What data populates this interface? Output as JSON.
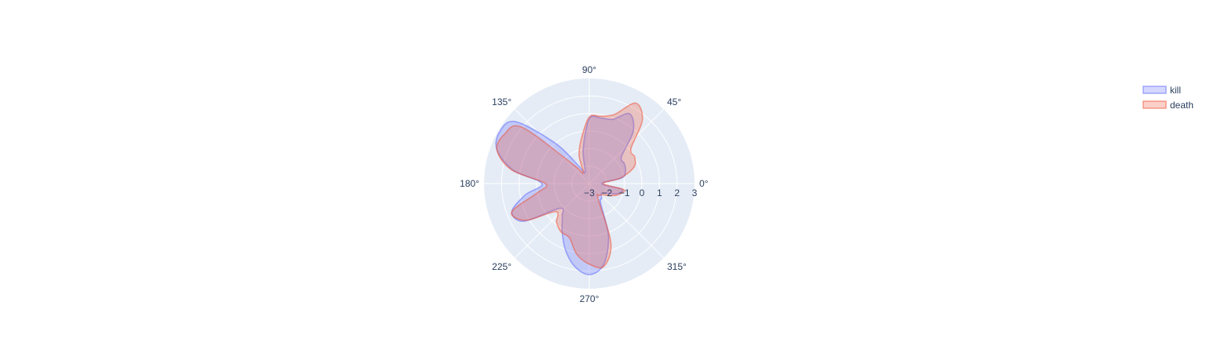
{
  "chart_data": {
    "type": "polar-area",
    "title": "",
    "angular_axis": {
      "unit": "degrees",
      "tick_labels": [
        "0°",
        "45°",
        "90°",
        "135°",
        "180°",
        "225°",
        "270°",
        "315°"
      ],
      "tick_values": [
        0,
        45,
        90,
        135,
        180,
        225,
        270,
        315
      ]
    },
    "radial_axis": {
      "range": [
        -3,
        3
      ],
      "tick_values": [
        -3,
        -2,
        -1,
        0,
        1,
        2,
        3
      ],
      "tick_labels": [
        "−3",
        "−2",
        "−1",
        "0",
        "1",
        "2",
        "3"
      ]
    },
    "grid": true,
    "legend": {
      "placement": "top-right"
    },
    "theta": [
      0,
      10,
      20,
      30,
      40,
      50,
      60,
      70,
      80,
      90,
      100,
      110,
      120,
      130,
      140,
      150,
      160,
      170,
      180,
      190,
      200,
      210,
      220,
      230,
      240,
      250,
      260,
      270,
      280,
      290,
      300,
      310,
      320,
      330,
      340,
      350
    ],
    "series": [
      {
        "name": "kill",
        "color": "#636efa",
        "values": [
          -2.3,
          -1.1,
          -0.8,
          -0.7,
          -0.6,
          0.9,
          1.6,
          0.9,
          0.8,
          0.7,
          -1.0,
          -2.3,
          -1.9,
          0.0,
          2.5,
          2.9,
          2.6,
          1.4,
          -0.3,
          0.7,
          1.7,
          1.3,
          -0.8,
          -0.6,
          0.1,
          1.0,
          1.8,
          2.2,
          1.7,
          0.2,
          -1.7,
          -1.9,
          -2.1,
          -1.9,
          -1.3,
          -1.1
        ]
      },
      {
        "name": "death",
        "color": "#ef553b",
        "values": [
          -2.2,
          -1.2,
          -0.3,
          0.0,
          0.1,
          1.7,
          2.3,
          1.2,
          0.9,
          0.8,
          -0.4,
          -1.3,
          -2.3,
          -1.6,
          2.0,
          2.6,
          2.6,
          1.5,
          -0.5,
          0.0,
          1.7,
          1.2,
          -0.5,
          -0.1,
          0.2,
          0.3,
          1.1,
          1.6,
          1.8,
          0.6,
          -2.0,
          -2.1,
          -2.0,
          -1.6,
          -1.2,
          -1.0
        ]
      }
    ]
  }
}
